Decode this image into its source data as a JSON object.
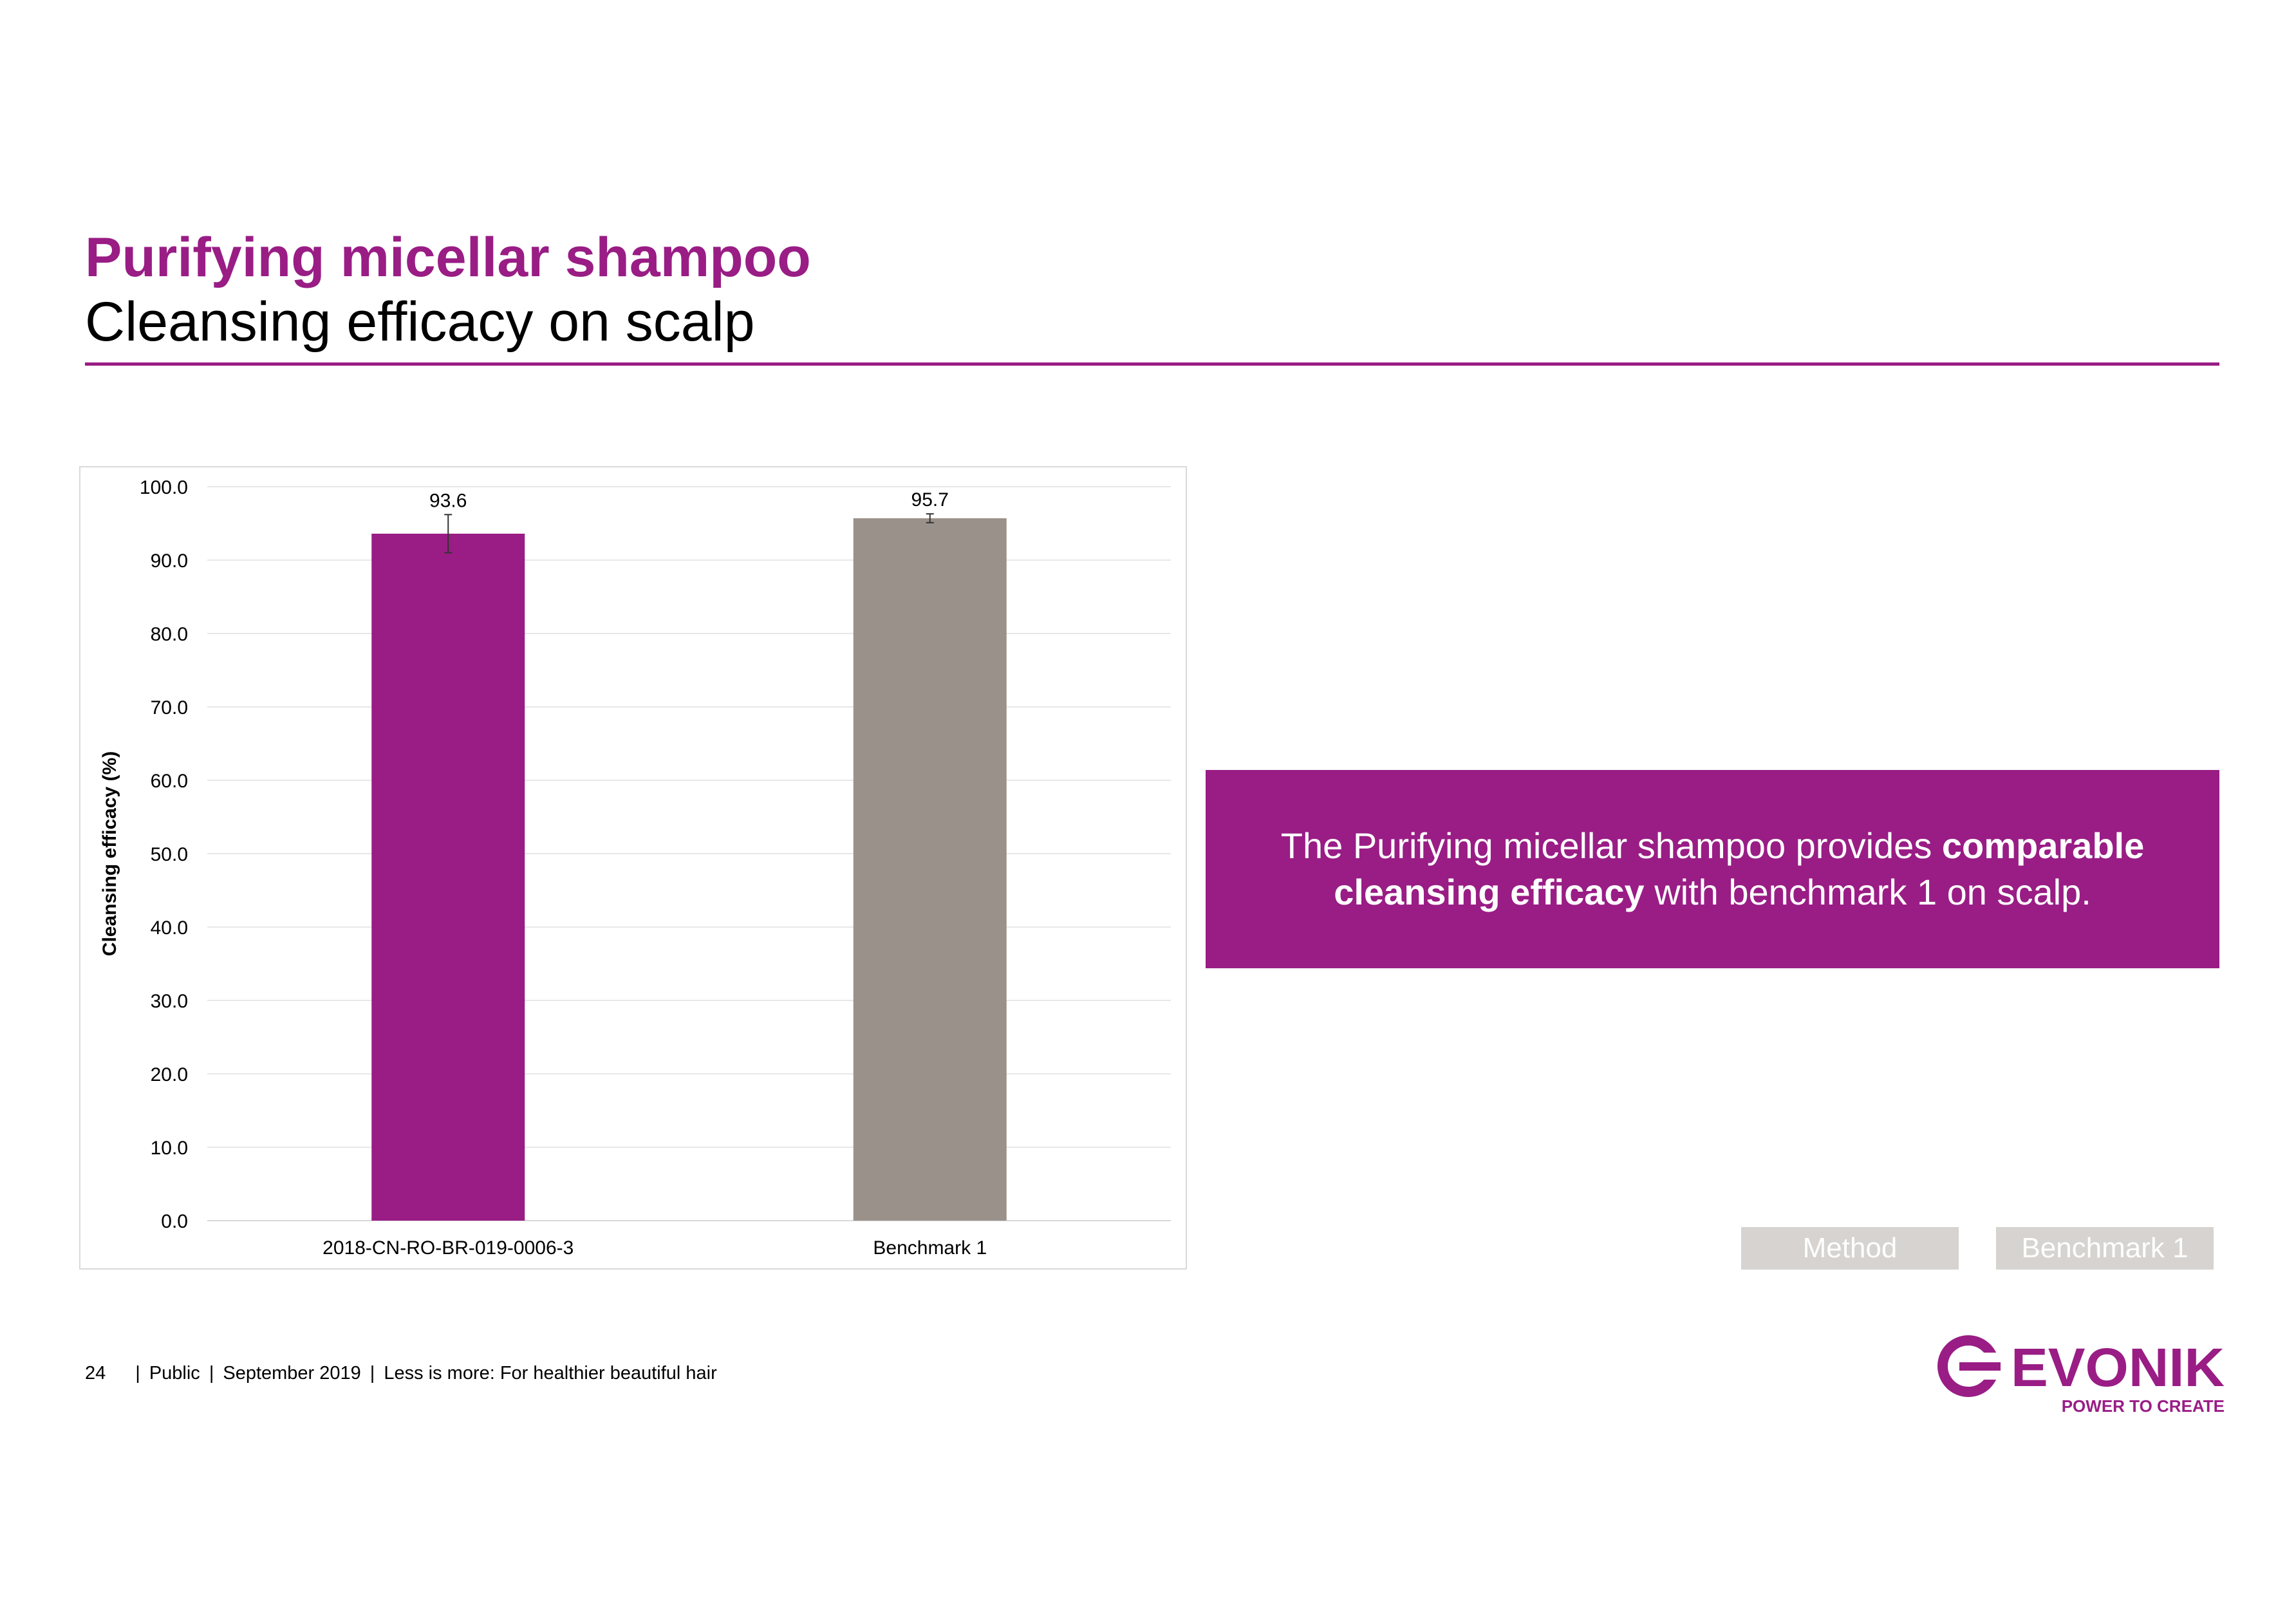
{
  "header": {
    "title": "Purifying micellar shampoo",
    "subtitle": "Cleansing efficacy on scalp"
  },
  "chart_data": {
    "type": "bar",
    "categories": [
      "2018-CN-RO-BR-019-0006-3",
      "Benchmark 1"
    ],
    "values": [
      93.6,
      95.7
    ],
    "value_labels": [
      "93.6",
      "95.7"
    ],
    "error": [
      2.6,
      0.6
    ],
    "colors": [
      "#991d85",
      "#9a918a"
    ],
    "ylabel": "Cleansing efficacy (%)",
    "ylim": [
      0,
      100
    ],
    "yticks": [
      "0.0",
      "10.0",
      "20.0",
      "30.0",
      "40.0",
      "50.0",
      "60.0",
      "70.0",
      "80.0",
      "90.0",
      "100.0"
    ],
    "grid": true
  },
  "takeaway": {
    "part1": "The Purifying micellar shampoo provides ",
    "bold1": "comparable cleansing efficacy",
    "part2": " with benchmark 1 on scalp."
  },
  "nav": {
    "method_label": "Method",
    "benchmark_label": "Benchmark 1"
  },
  "footer": {
    "page_number": "24",
    "classification": "Public",
    "date": "September 2019",
    "deck_title": "Less is more: For healthier beautiful hair"
  },
  "logo": {
    "wordmark": "EVONIK",
    "tagline": "POWER TO CREATE",
    "brand_color": "#991d85"
  }
}
